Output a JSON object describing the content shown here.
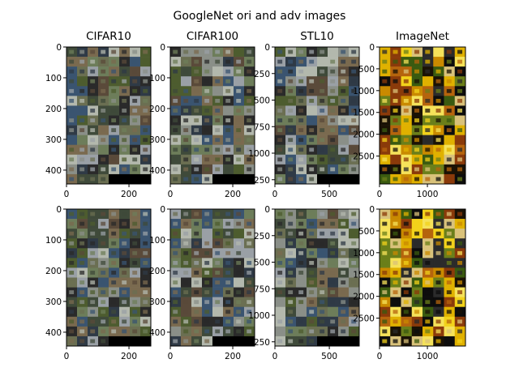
{
  "title": "GoogleNet ori and adv images",
  "colors": {
    "background": "#ffffff",
    "axis": "#000000",
    "padding": "#000000",
    "tile_palette": [
      "#3f4a3a",
      "#6b6f52",
      "#8a8f88",
      "#2f3a46",
      "#4d5c2f",
      "#9aa0a6",
      "#5a4a3a",
      "#2a2a2a",
      "#7a6a4f",
      "#b3b8ad",
      "#3a5470",
      "#6d7d5a"
    ],
    "imagenet_palette": [
      "#1a1205",
      "#e0b100",
      "#c98a00",
      "#f2d21b",
      "#6b7f1a",
      "#3a5a10",
      "#b5640d",
      "#2b2b2b",
      "#8a3a0a",
      "#d9c27a",
      "#0d0d0d",
      "#f5e25a"
    ]
  },
  "chart_data": [
    {
      "type": "image",
      "row": "ori",
      "title": "CIFAR10",
      "grid": [
        8,
        14
      ],
      "filled_last_row": 4,
      "xlim": [
        0,
        270
      ],
      "ylim": [
        445,
        0
      ],
      "xticks": [
        {
          "v": 0,
          "t": "0"
        },
        {
          "v": 200,
          "t": "200"
        }
      ],
      "yticks": [
        {
          "v": 0,
          "t": "0"
        },
        {
          "v": 100,
          "t": "100"
        },
        {
          "v": 200,
          "t": "200"
        },
        {
          "v": 300,
          "t": "300"
        },
        {
          "v": 400,
          "t": "400"
        }
      ]
    },
    {
      "type": "image",
      "row": "ori",
      "title": "CIFAR100",
      "grid": [
        8,
        14
      ],
      "filled_last_row": 4,
      "xlim": [
        0,
        270
      ],
      "ylim": [
        445,
        0
      ],
      "xticks": [
        {
          "v": 0,
          "t": "0"
        },
        {
          "v": 200,
          "t": "200"
        }
      ],
      "yticks": [
        {
          "v": 0,
          "t": "0"
        },
        {
          "v": 100,
          "t": "100"
        },
        {
          "v": 200,
          "t": "200"
        },
        {
          "v": 300,
          "t": "300"
        },
        {
          "v": 400,
          "t": "400"
        }
      ]
    },
    {
      "type": "image",
      "row": "ori",
      "title": "STL10",
      "grid": [
        8,
        14
      ],
      "filled_last_row": 4,
      "xlim": [
        0,
        775
      ],
      "ylim": [
        1290,
        0
      ],
      "xticks": [
        {
          "v": 0,
          "t": "0"
        },
        {
          "v": 500,
          "t": "500"
        }
      ],
      "yticks": [
        {
          "v": 0,
          "t": "0"
        },
        {
          "v": 250,
          "t": "250"
        },
        {
          "v": 500,
          "t": "500"
        },
        {
          "v": 750,
          "t": "750"
        },
        {
          "v": 1000,
          "t": "1000"
        },
        {
          "v": 1250,
          "t": "1250"
        }
      ]
    },
    {
      "type": "image",
      "row": "ori",
      "title": "ImageNet",
      "grid": [
        8,
        14
      ],
      "filled_last_row": 8,
      "xlim": [
        0,
        1795
      ],
      "ylim": [
        3140,
        0
      ],
      "xticks": [
        {
          "v": 0,
          "t": "0"
        },
        {
          "v": 1000,
          "t": "1000"
        }
      ],
      "yticks": [
        {
          "v": 0,
          "t": "0"
        },
        {
          "v": 500,
          "t": "500"
        },
        {
          "v": 1000,
          "t": "1000"
        },
        {
          "v": 1500,
          "t": "1500"
        },
        {
          "v": 2000,
          "t": "2000"
        },
        {
          "v": 2500,
          "t": "2500"
        }
      ]
    },
    {
      "type": "image",
      "row": "adv",
      "title": "",
      "grid": [
        8,
        14
      ],
      "filled_last_row": 4,
      "xlim": [
        0,
        270
      ],
      "ylim": [
        445,
        0
      ],
      "xticks": [
        {
          "v": 0,
          "t": "0"
        },
        {
          "v": 200,
          "t": "200"
        }
      ],
      "yticks": [
        {
          "v": 0,
          "t": "0"
        },
        {
          "v": 100,
          "t": "100"
        },
        {
          "v": 200,
          "t": "200"
        },
        {
          "v": 300,
          "t": "300"
        },
        {
          "v": 400,
          "t": "400"
        }
      ]
    },
    {
      "type": "image",
      "row": "adv",
      "title": "",
      "grid": [
        8,
        14
      ],
      "filled_last_row": 4,
      "xlim": [
        0,
        270
      ],
      "ylim": [
        445,
        0
      ],
      "xticks": [
        {
          "v": 0,
          "t": "0"
        },
        {
          "v": 200,
          "t": "200"
        }
      ],
      "yticks": [
        {
          "v": 0,
          "t": "0"
        },
        {
          "v": 100,
          "t": "100"
        },
        {
          "v": 200,
          "t": "200"
        },
        {
          "v": 300,
          "t": "300"
        },
        {
          "v": 400,
          "t": "400"
        }
      ]
    },
    {
      "type": "image",
      "row": "adv",
      "title": "",
      "grid": [
        8,
        14
      ],
      "filled_last_row": 4,
      "xlim": [
        0,
        775
      ],
      "ylim": [
        1290,
        0
      ],
      "xticks": [
        {
          "v": 0,
          "t": "0"
        },
        {
          "v": 500,
          "t": "500"
        }
      ],
      "yticks": [
        {
          "v": 0,
          "t": "0"
        },
        {
          "v": 250,
          "t": "250"
        },
        {
          "v": 500,
          "t": "500"
        },
        {
          "v": 750,
          "t": "750"
        },
        {
          "v": 1000,
          "t": "1000"
        },
        {
          "v": 1250,
          "t": "1250"
        }
      ]
    },
    {
      "type": "image",
      "row": "adv",
      "title": "",
      "grid": [
        8,
        14
      ],
      "filled_last_row": 8,
      "xlim": [
        0,
        1795
      ],
      "ylim": [
        3140,
        0
      ],
      "xticks": [
        {
          "v": 0,
          "t": "0"
        },
        {
          "v": 1000,
          "t": "1000"
        }
      ],
      "yticks": [
        {
          "v": 0,
          "t": "0"
        },
        {
          "v": 500,
          "t": "500"
        },
        {
          "v": 1000,
          "t": "1000"
        },
        {
          "v": 1500,
          "t": "1500"
        },
        {
          "v": 2000,
          "t": "2000"
        },
        {
          "v": 2500,
          "t": "2500"
        }
      ]
    }
  ]
}
